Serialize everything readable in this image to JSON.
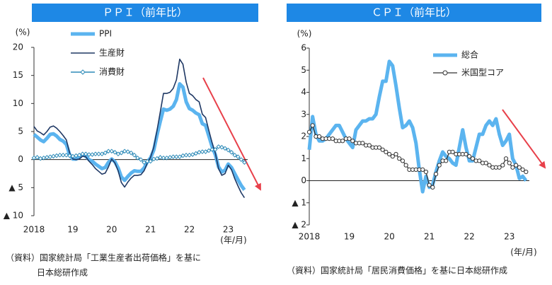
{
  "chart_data": [
    {
      "type": "line",
      "title": "ＰＰＩ（前年比）",
      "y_label": "(%)",
      "x_label": "(年/月)",
      "categories": [
        "2018",
        null,
        null,
        null,
        null,
        null,
        null,
        null,
        null,
        null,
        null,
        null,
        "19",
        null,
        null,
        null,
        null,
        null,
        null,
        null,
        null,
        null,
        null,
        null,
        "20",
        null,
        null,
        null,
        null,
        null,
        null,
        null,
        null,
        null,
        null,
        null,
        "21",
        null,
        null,
        null,
        null,
        null,
        null,
        null,
        null,
        null,
        null,
        null,
        "22",
        null,
        null,
        null,
        null,
        null,
        null,
        null,
        null,
        null,
        null,
        null,
        "23",
        null,
        null,
        null,
        null,
        null
      ],
      "series": [
        {
          "name": "PPI",
          "color": "#5bb4ef",
          "line_width": 5,
          "marker": null,
          "values": [
            4.5,
            4.0,
            3.5,
            3.2,
            3.8,
            4.5,
            4.6,
            4.2,
            3.6,
            3.3,
            2.7,
            0.9,
            0.1,
            0.1,
            0.4,
            0.9,
            0.6,
            0.0,
            -0.3,
            -0.8,
            -1.2,
            -1.6,
            -1.4,
            -0.5,
            0.1,
            -0.4,
            -1.5,
            -3.1,
            -3.7,
            -3.0,
            -2.4,
            -2.0,
            -2.1,
            -2.1,
            -1.5,
            -0.4,
            0.3,
            1.7,
            4.4,
            6.8,
            9.0,
            8.8,
            9.0,
            9.5,
            10.7,
            13.5,
            12.9,
            10.3,
            9.1,
            8.8,
            8.3,
            8.0,
            6.4,
            6.1,
            4.2,
            2.3,
            0.9,
            -1.3,
            -2.2,
            -1.9,
            -0.8,
            -1.4,
            -2.5,
            -3.6,
            -4.6,
            -5.4
          ]
        },
        {
          "name": "生産財",
          "color": "#1f3864",
          "line_width": 1.6,
          "marker": null,
          "values": [
            5.9,
            5.1,
            4.8,
            4.4,
            5.0,
            5.8,
            6.0,
            5.6,
            5.0,
            4.3,
            3.5,
            1.2,
            0.1,
            0.0,
            0.1,
            0.6,
            0.5,
            -0.3,
            -0.9,
            -1.6,
            -2.1,
            -2.6,
            -2.4,
            -1.3,
            0.1,
            -0.6,
            -2.0,
            -4.1,
            -4.9,
            -4.0,
            -3.3,
            -2.8,
            -2.8,
            -2.7,
            -2.0,
            -0.6,
            0.4,
            2.2,
            5.2,
            8.5,
            11.8,
            11.8,
            12.0,
            12.7,
            14.2,
            17.9,
            17.0,
            13.8,
            11.8,
            11.4,
            10.7,
            10.3,
            8.1,
            7.5,
            5.2,
            3.0,
            1.2,
            -1.6,
            -2.8,
            -2.5,
            -1.0,
            -1.8,
            -3.4,
            -4.7,
            -5.9,
            -6.8
          ]
        },
        {
          "name": "消費財",
          "color": "#2e8bb8",
          "line_width": 1.5,
          "marker": "diamond",
          "values": [
            0.3,
            0.4,
            0.2,
            0.3,
            0.4,
            0.5,
            0.6,
            0.7,
            0.8,
            0.8,
            0.8,
            0.7,
            0.6,
            0.7,
            0.8,
            1.0,
            1.0,
            0.9,
            0.9,
            1.0,
            1.0,
            1.0,
            1.2,
            1.5,
            1.5,
            1.3,
            1.0,
            1.2,
            1.5,
            1.4,
            1.2,
            0.8,
            0.3,
            0.0,
            -0.5,
            -0.3,
            -0.3,
            0.1,
            0.2,
            0.4,
            0.3,
            0.3,
            0.4,
            0.5,
            0.5,
            0.5,
            0.7,
            0.8,
            0.8,
            0.9,
            1.1,
            1.3,
            1.4,
            1.4,
            1.6,
            1.8,
            1.8,
            2.3,
            2.2,
            2.0,
            1.7,
            1.3,
            0.8,
            0.5,
            0.0,
            -0.5
          ]
        }
      ],
      "ylim": [
        -10,
        20
      ],
      "yticks": [
        20,
        15,
        10,
        5,
        0,
        {
          "value": -5,
          "label": "▲ 5"
        },
        {
          "value": -10,
          "label": "▲ 10"
        }
      ],
      "note": [
        "（資料）国家統計局「工業生産者出荷価格」を基に",
        "日本総研作成"
      ]
    },
    {
      "type": "line",
      "title": "ＣＰＩ（前年比）",
      "y_label": "(%)",
      "x_label": "(年/月)",
      "categories": [
        "2018",
        null,
        null,
        null,
        null,
        null,
        null,
        null,
        null,
        null,
        null,
        null,
        "19",
        null,
        null,
        null,
        null,
        null,
        null,
        null,
        null,
        null,
        null,
        null,
        "20",
        null,
        null,
        null,
        null,
        null,
        null,
        null,
        null,
        null,
        null,
        null,
        "21",
        null,
        null,
        null,
        null,
        null,
        null,
        null,
        null,
        null,
        null,
        null,
        "22",
        null,
        null,
        null,
        null,
        null,
        null,
        null,
        null,
        null,
        null,
        null,
        "23",
        null,
        null,
        null,
        null,
        null
      ],
      "series": [
        {
          "name": "総合",
          "color": "#5bb4ef",
          "line_width": 5,
          "marker": null,
          "values": [
            1.4,
            2.9,
            2.1,
            1.8,
            1.8,
            1.9,
            2.1,
            2.3,
            2.5,
            2.5,
            2.2,
            1.9,
            1.7,
            1.5,
            2.3,
            2.5,
            2.7,
            2.7,
            2.8,
            2.8,
            3.0,
            3.8,
            4.5,
            4.5,
            5.4,
            5.2,
            4.3,
            3.3,
            2.4,
            2.5,
            2.7,
            2.4,
            1.7,
            0.5,
            -0.5,
            0.2,
            -0.3,
            -0.2,
            0.4,
            0.9,
            1.3,
            1.1,
            1.0,
            0.8,
            0.7,
            1.5,
            2.3,
            1.5,
            0.9,
            0.9,
            1.5,
            2.1,
            2.1,
            2.5,
            2.7,
            2.5,
            2.8,
            2.1,
            1.6,
            1.8,
            2.1,
            1.0,
            0.7,
            0.1,
            0.2,
            0.0
          ]
        },
        {
          "name": "米国型コア",
          "color": "#333333",
          "line_width": 1.3,
          "marker": "circle",
          "values": [
            2.2,
            2.5,
            2.0,
            2.0,
            1.9,
            1.9,
            1.9,
            1.9,
            1.8,
            1.8,
            1.8,
            1.9,
            1.9,
            1.8,
            1.7,
            1.7,
            1.7,
            1.6,
            1.6,
            1.5,
            1.5,
            1.5,
            1.4,
            1.3,
            1.2,
            1.1,
            1.2,
            1.0,
            0.9,
            0.7,
            0.5,
            0.5,
            0.5,
            0.5,
            0.5,
            0.4,
            -0.2,
            -0.3,
            0.3,
            0.7,
            0.9,
            0.9,
            1.3,
            1.3,
            1.2,
            1.2,
            1.2,
            1.2,
            1.1,
            1.0,
            0.9,
            0.9,
            0.8,
            0.8,
            0.7,
            0.6,
            0.6,
            0.6,
            0.7,
            1.0,
            0.8,
            0.6,
            0.7,
            0.6,
            0.5,
            0.4
          ]
        }
      ],
      "ylim": [
        -2,
        6
      ],
      "yticks": [
        6,
        5,
        4,
        3,
        2,
        1,
        0,
        {
          "value": -1,
          "label": "▲ 1"
        },
        {
          "value": -2,
          "label": "▲ 2"
        }
      ],
      "note": [
        "（資料）国家統計局「居民消費価格」を基に日本総研作成"
      ]
    }
  ]
}
